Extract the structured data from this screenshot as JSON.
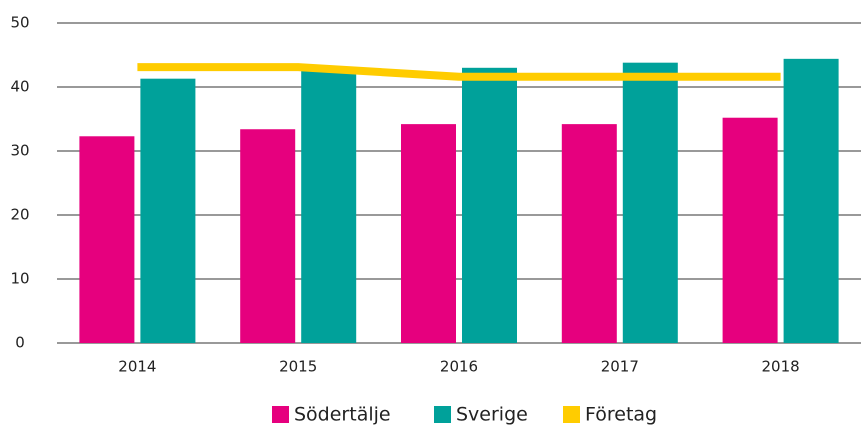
{
  "chart_data": {
    "type": "bar",
    "categories": [
      "2014",
      "2015",
      "2016",
      "2017",
      "2018"
    ],
    "series": [
      {
        "name": "Södertälje",
        "color": "#e6007e",
        "values": [
          32.3,
          33.4,
          34.2,
          34.2,
          35.2
        ]
      },
      {
        "name": "Sverige",
        "color": "#00a19a",
        "values": [
          41.3,
          42.5,
          43.0,
          43.8,
          44.4
        ]
      },
      {
        "name": "Företag",
        "type": "line",
        "color": "#ffcc00",
        "values": [
          43.1,
          43.1,
          41.6,
          41.6,
          41.6
        ]
      }
    ],
    "ylim": [
      0,
      50
    ],
    "yticks": [
      0,
      10,
      20,
      30,
      40,
      50
    ],
    "grid": true,
    "legend": "bottom"
  }
}
